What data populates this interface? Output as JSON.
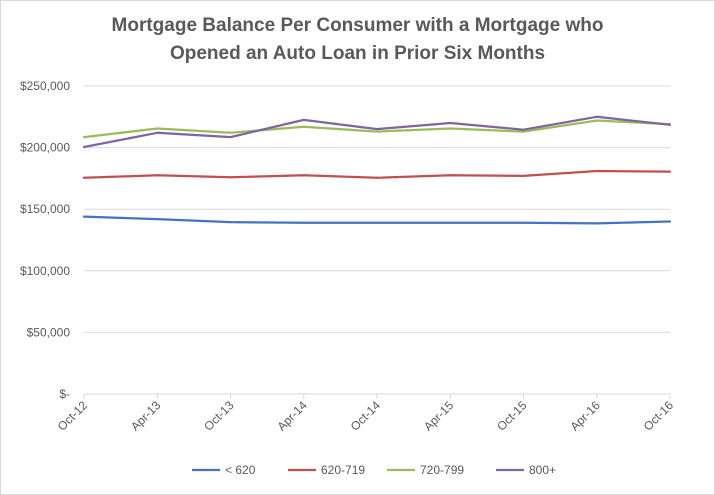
{
  "chart_data": {
    "type": "line",
    "title_line1": "Mortgage Balance Per Consumer with a Mortgage who",
    "title_line2": "Opened an Auto Loan in Prior Six Months",
    "categories": [
      "Oct-12",
      "Apr-13",
      "Oct-13",
      "Apr-14",
      "Oct-14",
      "Apr-15",
      "Oct-15",
      "Apr-16",
      "Oct-16"
    ],
    "ylim": [
      0,
      250000
    ],
    "y_ticks": [
      {
        "value": 0,
        "label": "$-"
      },
      {
        "value": 50000,
        "label": "$50,000"
      },
      {
        "value": 100000,
        "label": "$100,000"
      },
      {
        "value": 150000,
        "label": "$150,000"
      },
      {
        "value": 200000,
        "label": "$200,000"
      },
      {
        "value": 250000,
        "label": "$250,000"
      }
    ],
    "grid": true,
    "legend_position": "bottom",
    "series": [
      {
        "name": "< 620",
        "color": "#4472c4",
        "values": [
          144000,
          142000,
          139500,
          139000,
          139000,
          139000,
          139000,
          138500,
          140000
        ]
      },
      {
        "name": "620-719",
        "color": "#c0504d",
        "values": [
          175500,
          177500,
          176000,
          177500,
          175500,
          177500,
          177000,
          181000,
          180500
        ]
      },
      {
        "name": "720-799",
        "color": "#9bbb59",
        "values": [
          208500,
          215500,
          212000,
          217000,
          213000,
          215500,
          213000,
          222000,
          219000
        ]
      },
      {
        "name": "800+",
        "color": "#8064a2",
        "values": [
          200500,
          212000,
          208500,
          222500,
          215000,
          220000,
          214500,
          225000,
          218500
        ]
      }
    ]
  }
}
